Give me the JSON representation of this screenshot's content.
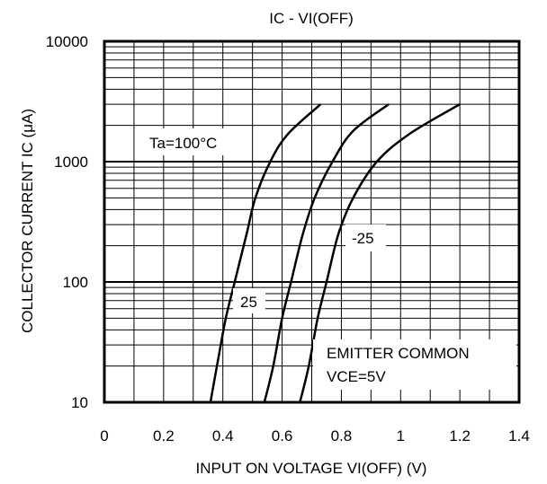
{
  "chart_data": {
    "type": "line",
    "title": "IC - VI(OFF)",
    "xlabel": "INPUT ON VOLTAGE VI(OFF) (V)",
    "ylabel": "COLLECTOR CURRENT IC (μA)",
    "xlim": [
      0,
      1.4
    ],
    "ylim": [
      10,
      10000
    ],
    "yscale": "log",
    "grid": true,
    "x_ticks": [
      "0",
      "0.2",
      "0.4",
      "0.6",
      "0.8",
      "1",
      "1.2",
      "1.4"
    ],
    "y_ticks": [
      "10",
      "100",
      "1000",
      "10000"
    ],
    "series": [
      {
        "name": "Ta=100°C",
        "points": [
          [
            0.358,
            10
          ],
          [
            0.38,
            20
          ],
          [
            0.41,
            50
          ],
          [
            0.44,
            100
          ],
          [
            0.48,
            250
          ],
          [
            0.51,
            500
          ],
          [
            0.56,
            1000
          ],
          [
            0.62,
            1700
          ],
          [
            0.73,
            3000
          ]
        ]
      },
      {
        "name": "25",
        "points": [
          [
            0.54,
            10
          ],
          [
            0.57,
            20
          ],
          [
            0.6,
            50
          ],
          [
            0.63,
            100
          ],
          [
            0.67,
            250
          ],
          [
            0.71,
            500
          ],
          [
            0.77,
            1000
          ],
          [
            0.84,
            1800
          ],
          [
            0.96,
            3000
          ]
        ]
      },
      {
        "name": "-25",
        "points": [
          [
            0.66,
            10
          ],
          [
            0.69,
            20
          ],
          [
            0.72,
            50
          ],
          [
            0.75,
            100
          ],
          [
            0.79,
            250
          ],
          [
            0.84,
            500
          ],
          [
            0.92,
            1000
          ],
          [
            1.03,
            1700
          ],
          [
            1.2,
            3000
          ]
        ]
      }
    ],
    "annotations": [
      "Ta=100°C",
      "25",
      "-25",
      "EMITTER COMMON",
      "VCE=5V"
    ],
    "legend_position": "none"
  }
}
